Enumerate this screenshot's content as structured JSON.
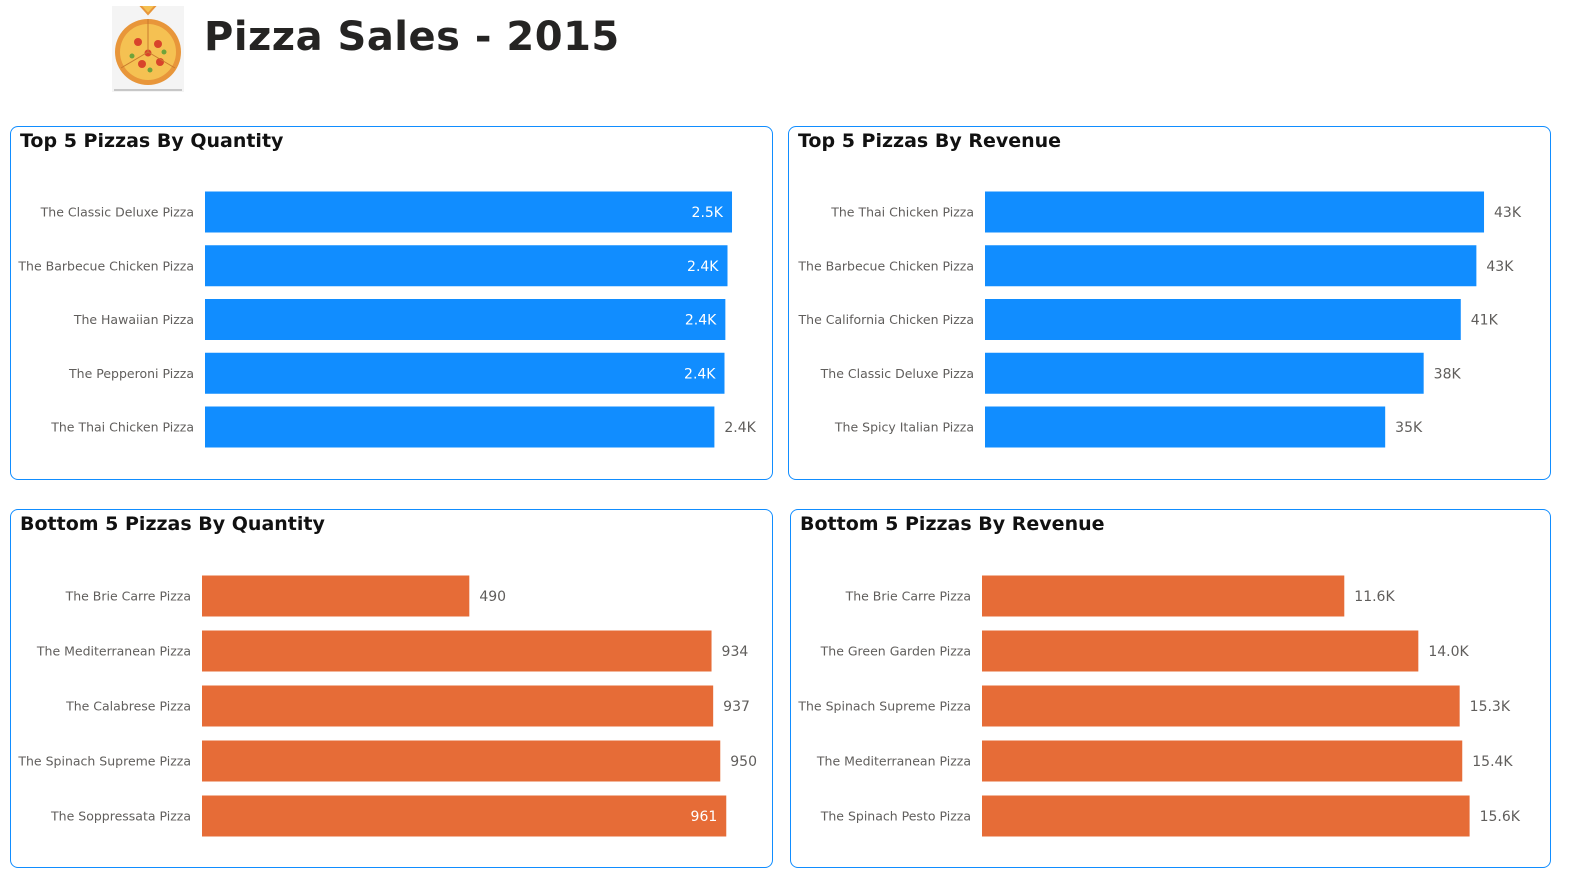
{
  "header": {
    "title": "Pizza Sales - 2015",
    "logo_icon": "pizza-icon"
  },
  "colors": {
    "top_bar": "#118DFF",
    "bottom_bar": "#E66C37",
    "panel_border": "#118DFF",
    "outside_label": "#605E5C",
    "inside_label": "#FFFFFF"
  },
  "chart_data": [
    {
      "type": "bar",
      "orientation": "horizontal",
      "title": "Top 5 Pizzas By Quantity",
      "categories": [
        "The Classic Deluxe Pizza",
        "The Barbecue Chicken Pizza",
        "The Hawaiian Pizza",
        "The Pepperoni Pizza",
        "The Thai Chicken Pizza"
      ],
      "values": [
        2453,
        2432,
        2422,
        2418,
        2371
      ],
      "labels": [
        "2.5K",
        "2.4K",
        "2.4K",
        "2.4K",
        "2.4K"
      ],
      "label_inside": [
        true,
        true,
        true,
        true,
        false
      ],
      "xlim": [
        0,
        2560
      ],
      "color": "#118DFF"
    },
    {
      "type": "bar",
      "orientation": "horizontal",
      "title": "Top 5 Pizzas By Revenue",
      "categories": [
        "The Thai Chicken Pizza",
        "The Barbecue Chicken Pizza",
        "The California Chicken Pizza",
        "The Classic Deluxe Pizza",
        "The Spicy Italian Pizza"
      ],
      "values": [
        43434,
        42768,
        41410,
        38180,
        34831
      ],
      "labels": [
        "43K",
        "43K",
        "41K",
        "38K",
        "35K"
      ],
      "label_inside": [
        false,
        false,
        false,
        false,
        false
      ],
      "xlim": [
        0,
        47000
      ],
      "color": "#118DFF"
    },
    {
      "type": "bar",
      "orientation": "horizontal",
      "title": "Bottom 5 Pizzas By Quantity",
      "categories": [
        "The Brie Carre Pizza",
        "The Mediterranean Pizza",
        "The Calabrese Pizza",
        "The Spinach Supreme Pizza",
        "The Soppressata Pizza"
      ],
      "values": [
        490,
        934,
        937,
        950,
        961
      ],
      "labels": [
        "490",
        "934",
        "937",
        "950",
        "961"
      ],
      "label_inside": [
        false,
        false,
        false,
        false,
        true
      ],
      "xlim": [
        0,
        1010
      ],
      "color": "#E66C37"
    },
    {
      "type": "bar",
      "orientation": "horizontal",
      "title": "Bottom 5 Pizzas By Revenue",
      "categories": [
        "The Brie Carre Pizza",
        "The Green Garden Pizza",
        "The Spinach Supreme Pizza",
        "The Mediterranean Pizza",
        "The Spinach Pesto Pizza"
      ],
      "values": [
        11588,
        13956,
        15278,
        15361,
        15596
      ],
      "labels": [
        "11.6K",
        "14.0K",
        "15.3K",
        "15.4K",
        "15.6K"
      ],
      "label_inside": [
        false,
        false,
        false,
        false,
        false
      ],
      "xlim": [
        0,
        17400
      ],
      "color": "#E66C37"
    }
  ]
}
